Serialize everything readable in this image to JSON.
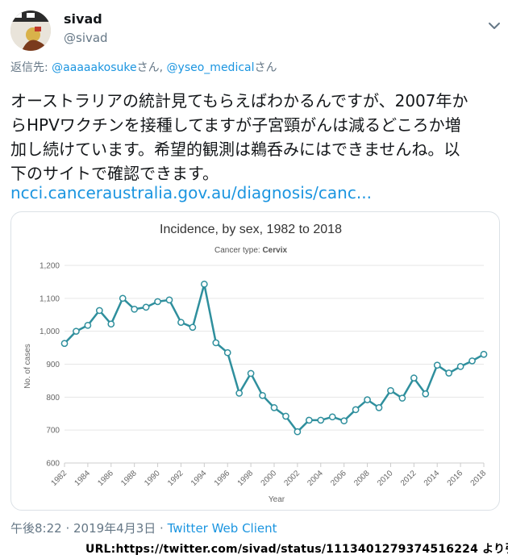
{
  "tweet": {
    "display_name": "sivad",
    "handle": "@sivad",
    "reply_prefix": "返信先: ",
    "reply_mention1": "@aaaaakosuke",
    "reply_san1": "さん, ",
    "reply_mention2": "@yseo_medical",
    "reply_san2": "さん",
    "text_lines": [
      "オーストラリアの統計見てもらえばわかるんですが、2007年か",
      "らHPVワクチンを接種してますが子宮頸がんは減るどころか増",
      "加し続けています。希望的観測は鵜呑みにはできませんね。以",
      "下のサイトで確認できます。"
    ],
    "link_text": "ncci.canceraustralia.gov.au/diagnosis/canc...",
    "timestamp": "午後8:22 · 2019年4月3日 · ",
    "client": "Twitter Web Client"
  },
  "footer": {
    "source_url": "URL:https://twitter.com/sivad/status/1113401279374516224 より引用"
  },
  "colors": {
    "link": "#1b95e0",
    "secondary_text": "#657786",
    "line": "#2f8f9d"
  },
  "icons": {
    "menu": "chevron-down-icon",
    "avatar": "avatar"
  },
  "chart_data": {
    "type": "line",
    "title": "Incidence, by sex, 1982 to 2018",
    "subtitle_prefix": "Cancer type: ",
    "subtitle_value": "Cervix",
    "xlabel": "Year",
    "ylabel": "No. of cases",
    "ylim": [
      600,
      1200
    ],
    "yticks": [
      600,
      700,
      800,
      900,
      1000,
      1100,
      1200
    ],
    "ytick_labels": [
      "600",
      "700",
      "800",
      "900",
      "1,000",
      "1,100",
      "1,200"
    ],
    "xticks": [
      1982,
      1984,
      1986,
      1988,
      1990,
      1992,
      1994,
      1996,
      1998,
      2000,
      2002,
      2004,
      2006,
      2008,
      2010,
      2012,
      2014,
      2016,
      2018
    ],
    "grid": true,
    "x": [
      1982,
      1983,
      1984,
      1985,
      1986,
      1987,
      1988,
      1989,
      1990,
      1991,
      1992,
      1993,
      1994,
      1995,
      1996,
      1997,
      1998,
      1999,
      2000,
      2001,
      2002,
      2003,
      2004,
      2005,
      2006,
      2007,
      2008,
      2009,
      2010,
      2011,
      2012,
      2013,
      2014,
      2015,
      2016,
      2017,
      2018
    ],
    "values": [
      963,
      1000,
      1018,
      1063,
      1022,
      1100,
      1067,
      1073,
      1090,
      1095,
      1027,
      1012,
      1143,
      965,
      935,
      812,
      872,
      805,
      768,
      742,
      695,
      730,
      730,
      740,
      728,
      762,
      792,
      768,
      820,
      797,
      858,
      810,
      897,
      873,
      893,
      910,
      930
    ]
  }
}
